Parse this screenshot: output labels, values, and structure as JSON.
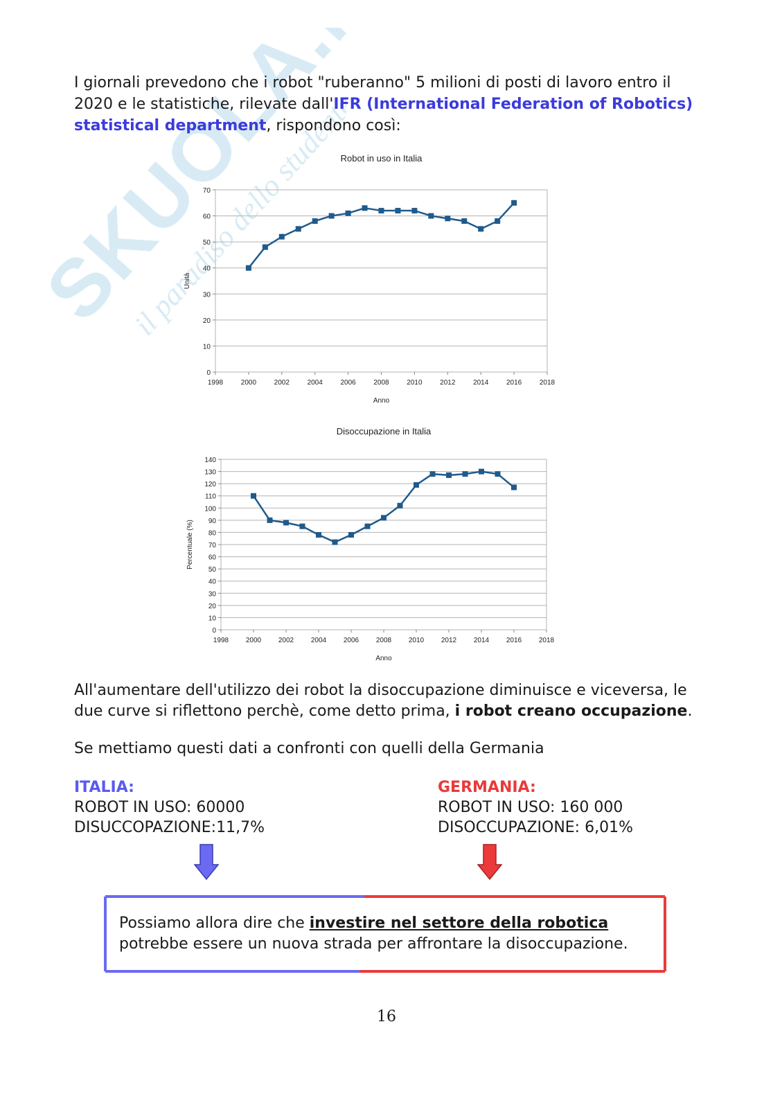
{
  "watermark": {
    "brand": "SKUOLA.NET",
    "tagline": "il paradiso dello studente",
    "color": "#b9dcee"
  },
  "intro": {
    "part1": "I giornali prevedono che i robot \"ruberanno\" 5 milioni di posti di lavoro entro il 2020 e le statistiche, rilevate dall'",
    "link": "IFR (International Federation of Robotics) statistical department",
    "part2": ", rispondono così:"
  },
  "chart_data": [
    {
      "type": "line",
      "title": "Robot in uso in Italia",
      "xlabel": "Anno",
      "ylabel": "Unità",
      "xlim": [
        1998,
        2018
      ],
      "ylim": [
        0,
        70
      ],
      "xticks": [
        1998,
        2000,
        2002,
        2004,
        2006,
        2008,
        2010,
        2012,
        2014,
        2016,
        2018
      ],
      "yticks": [
        0,
        10,
        20,
        30,
        40,
        50,
        60,
        70
      ],
      "grid": true,
      "color": "#1f5a8c",
      "x": [
        2000,
        2001,
        2002,
        2003,
        2004,
        2005,
        2006,
        2007,
        2008,
        2009,
        2010,
        2011,
        2012,
        2013,
        2014,
        2015,
        2016
      ],
      "y": [
        40,
        48,
        52,
        55,
        58,
        60,
        61,
        63,
        62,
        62,
        62,
        60,
        59,
        58,
        55,
        58,
        65
      ]
    },
    {
      "type": "line",
      "title": "Disoccupazione in Italia",
      "xlabel": "Anno",
      "ylabel": "Percentuale (%)",
      "xlim": [
        1998,
        2018
      ],
      "ylim": [
        0,
        140
      ],
      "xticks": [
        1998,
        2000,
        2002,
        2004,
        2006,
        2008,
        2010,
        2012,
        2014,
        2016,
        2018
      ],
      "yticks": [
        0,
        10,
        20,
        30,
        40,
        50,
        60,
        70,
        80,
        90,
        100,
        110,
        120,
        130,
        140
      ],
      "grid": true,
      "color": "#1f5a8c",
      "x": [
        2000,
        2001,
        2002,
        2003,
        2004,
        2005,
        2006,
        2007,
        2008,
        2009,
        2010,
        2011,
        2012,
        2013,
        2014,
        2015,
        2016
      ],
      "y": [
        110,
        90,
        88,
        85,
        78,
        72,
        78,
        85,
        92,
        102,
        119,
        128,
        127,
        128,
        130,
        128,
        117
      ]
    }
  ],
  "para_inverse": {
    "text": "All'aumentare dell'utilizzo dei robot la disoccupazione diminuisce e viceversa, le due curve si riflettono perchè, come detto prima, ",
    "bold": "i robot creano occupazione",
    "end": "."
  },
  "para_compare": "Se mettiamo questi dati a confronti con quelli della Germania",
  "italia": {
    "title": "ITALIA:",
    "robot": "ROBOT IN USO: 60000",
    "disoc": "DISUCCOPAZIONE:11,7%",
    "color": "#5a5af0"
  },
  "germania": {
    "title": "GERMANIA:",
    "robot": "ROBOT IN USO: 160 000",
    "disoc": "DISOCCUPAZIONE: 6,01%",
    "color": "#e83a3a"
  },
  "conclusion": {
    "part1": "Possiamo allora dire che ",
    "bold": "investire nel settore della robotica",
    "part2": " potrebbe essere un nuova strada per affrontare la disoccupazione."
  },
  "page_number": "16"
}
